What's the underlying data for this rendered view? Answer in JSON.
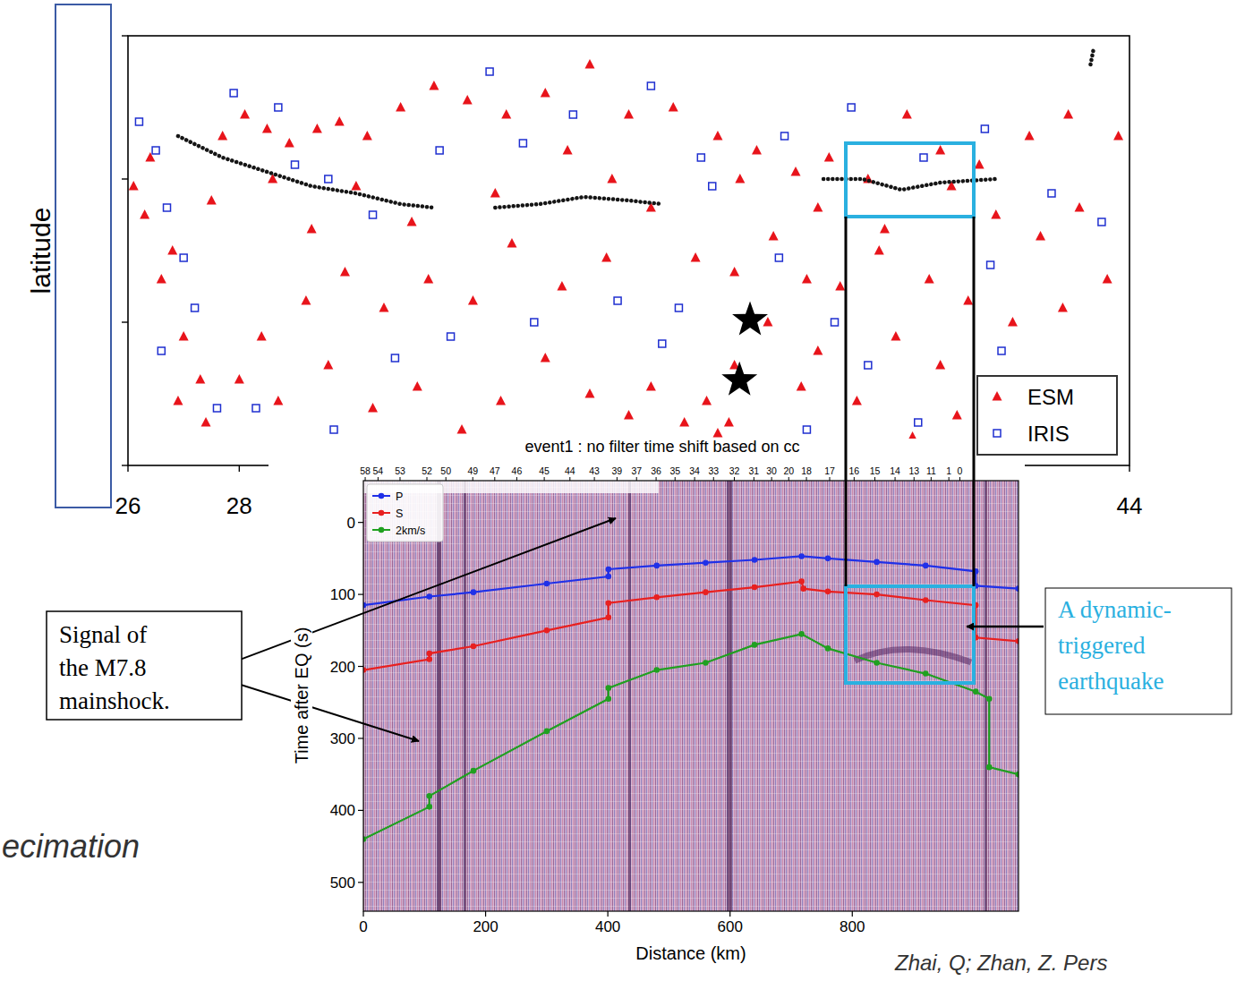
{
  "chart_data": [
    {
      "type": "scatter",
      "y_label": "latitude",
      "xlim": [
        26,
        44
      ],
      "ylim": [
        36,
        42
      ],
      "xticks": [
        26,
        28,
        44
      ],
      "yticks": [
        36,
        38,
        40,
        42
      ],
      "tick_labels": "x",
      "grid": false,
      "legend": "lower right",
      "series": [
        {
          "name": "ESM",
          "color": "#e8141b",
          "marker": "triangle",
          "x": [
            26.1,
            26.4,
            26.3,
            26.8,
            26.6,
            27.0,
            27.3,
            26.9,
            27.5,
            27.7,
            28.1,
            28.5,
            28.9,
            29.4,
            29.8,
            30.3,
            30.9,
            31.5,
            32.1,
            32.8,
            33.5,
            34.3,
            35.0,
            35.8,
            36.6,
            37.3,
            38.0,
            38.6,
            39.3,
            40.0,
            40.6,
            41.3,
            42.2,
            42.9,
            43.8,
            43.6,
            42.8,
            41.9,
            41.1,
            40.4,
            39.5,
            38.8,
            38.2,
            37.6,
            36.9,
            36.2,
            35.4,
            34.6,
            33.8,
            32.9,
            32.2,
            31.4,
            30.6,
            29.9,
            29.2,
            28.4,
            28.0,
            27.4,
            28.7,
            29.6,
            30.4,
            31.2,
            32.0,
            32.7,
            33.5,
            34.3,
            35.0,
            35.4,
            36.0,
            36.4,
            36.6,
            36.8,
            36.9,
            37.5,
            38.1,
            38.4,
            39.1,
            39.8,
            40.6,
            40.9,
            40.1,
            39.6,
            38.4,
            37.0,
            34.7,
            33.9,
            32.6,
            31.1,
            30.1,
            29.3,
            28.6,
            43.1,
            42.4,
            41.6,
            40.8
          ],
          "values": [
            39.9,
            40.3,
            39.5,
            39.0,
            38.6,
            37.8,
            37.2,
            36.9,
            39.7,
            40.6,
            40.9,
            40.7,
            40.5,
            40.7,
            40.8,
            40.6,
            41.0,
            41.3,
            41.1,
            40.9,
            41.2,
            41.6,
            40.9,
            41.0,
            40.6,
            40.4,
            40.1,
            40.3,
            40.0,
            40.9,
            40.4,
            40.2,
            40.6,
            40.9,
            40.6,
            38.6,
            38.2,
            38.0,
            38.3,
            38.6,
            39.0,
            38.5,
            38.6,
            39.2,
            38.7,
            38.9,
            39.6,
            38.9,
            38.5,
            39.1,
            38.3,
            38.6,
            38.2,
            38.7,
            38.3,
            37.8,
            37.2,
            36.6,
            36.9,
            37.4,
            36.8,
            37.1,
            36.5,
            36.9,
            37.5,
            37.0,
            36.7,
            37.1,
            36.6,
            36.9,
            36.45,
            36.6,
            37.4,
            38.0,
            37.1,
            37.6,
            36.9,
            37.8,
            37.4,
            36.7,
            36.4,
            39.3,
            39.6,
            40.0,
            40.0,
            40.4,
            39.8,
            39.4,
            39.9,
            39.3,
            40.0,
            39.6,
            39.2,
            39.5,
            39.9
          ]
        },
        {
          "name": "IRIS",
          "color": "#1f2fd0",
          "marker": "square",
          "x": [
            26.2,
            26.5,
            26.7,
            27.0,
            27.2,
            26.6,
            27.6,
            27.9,
            28.7,
            29.0,
            29.6,
            30.4,
            31.6,
            32.5,
            33.1,
            34.0,
            35.4,
            36.5,
            37.8,
            39.0,
            40.3,
            41.4,
            42.6,
            43.5,
            41.7,
            40.2,
            39.3,
            38.7,
            37.7,
            35.9,
            34.8,
            33.3,
            31.8,
            30.8,
            29.7,
            28.3,
            35.6,
            38.2,
            41.5,
            36.3
          ],
          "values": [
            40.8,
            40.4,
            39.6,
            38.9,
            38.2,
            37.6,
            36.8,
            41.2,
            41.0,
            40.2,
            40.0,
            39.5,
            40.4,
            41.5,
            40.5,
            40.9,
            41.3,
            39.9,
            40.6,
            41.0,
            40.3,
            40.7,
            39.8,
            39.4,
            37.6,
            36.6,
            37.4,
            38.0,
            38.9,
            38.2,
            38.3,
            38.0,
            37.8,
            37.5,
            36.5,
            36.8,
            37.7,
            36.5,
            38.8,
            40.3
          ]
        },
        {
          "type": "line",
          "color": "#151515",
          "line_style": "dotted",
          "x": [
            26.9,
            27.7,
            28.5,
            29.3,
            30.1,
            30.9,
            31.5,
            32.0,
            32.6,
            33.4,
            34.2,
            35.0,
            35.6,
            37.0,
            38.5,
            39.2,
            39.9,
            40.6,
            41.6,
            42.5,
            43.3,
            43.35
          ],
          "values": [
            40.6,
            40.3,
            40.1,
            39.9,
            39.8,
            39.65,
            39.6,
            null,
            39.6,
            39.65,
            39.75,
            39.7,
            39.65,
            null,
            40.0,
            40.0,
            39.85,
            39.95,
            40.0,
            null,
            41.6,
            41.8
          ]
        },
        {
          "color": "#000000",
          "marker": "star",
          "x": [
            37.18,
            36.99
          ],
          "values": [
            38.03,
            37.19
          ]
        }
      ]
    },
    {
      "type": "line",
      "title": "event1 : no filter time shift based on cc",
      "x_label": "Distance (km)",
      "y_label": "Time after EQ (s)",
      "xlim": [
        0,
        1072
      ],
      "ylim": [
        540,
        -58
      ],
      "xticks": [
        0,
        200,
        400,
        600,
        800
      ],
      "yticks": [
        0,
        100,
        200,
        300,
        400,
        500
      ],
      "x2ticks": [
        {
          "value": 3,
          "label": "58"
        },
        {
          "value": 24,
          "label": "54"
        },
        {
          "value": 60,
          "label": "53"
        },
        {
          "value": 104,
          "label": "52"
        },
        {
          "value": 135,
          "label": "50"
        },
        {
          "value": 179,
          "label": "49"
        },
        {
          "value": 215,
          "label": "47"
        },
        {
          "value": 251,
          "label": "46"
        },
        {
          "value": 296,
          "label": "45"
        },
        {
          "value": 338,
          "label": "44"
        },
        {
          "value": 378,
          "label": "43"
        },
        {
          "value": 415,
          "label": "39"
        },
        {
          "value": 447,
          "label": "37"
        },
        {
          "value": 479,
          "label": "36"
        },
        {
          "value": 510,
          "label": "35"
        },
        {
          "value": 542,
          "label": "34"
        },
        {
          "value": 573,
          "label": "33"
        },
        {
          "value": 607,
          "label": "32"
        },
        {
          "value": 639,
          "label": "31"
        },
        {
          "value": 668,
          "label": "30"
        },
        {
          "value": 696,
          "label": "20"
        },
        {
          "value": 725,
          "label": "18"
        },
        {
          "value": 763,
          "label": "17"
        },
        {
          "value": 803,
          "label": "16"
        },
        {
          "value": 837,
          "label": "15"
        },
        {
          "value": 870,
          "label": "14"
        },
        {
          "value": 901,
          "label": "13"
        },
        {
          "value": 929,
          "label": "11"
        },
        {
          "value": 958,
          "label": "1"
        },
        {
          "value": 976,
          "label": "0"
        }
      ],
      "legend": "upper left",
      "marker": "circle",
      "grid": false,
      "series": [
        {
          "name": "P",
          "color": "#2030e8",
          "x": [
            0,
            108,
            180,
            300,
            401,
            401,
            480,
            560,
            640,
            717,
            760,
            840,
            920,
            1002,
            1002,
            1072
          ],
          "values": [
            115,
            103,
            97,
            85,
            75,
            65,
            60,
            56,
            52,
            47,
            50,
            55,
            60,
            68,
            88,
            92
          ]
        },
        {
          "name": "S",
          "color": "#e82020",
          "x": [
            0,
            108,
            108,
            180,
            300,
            401,
            401,
            480,
            560,
            640,
            717,
            720,
            760,
            840,
            920,
            1002,
            1002,
            1072
          ],
          "values": [
            205,
            190,
            182,
            172,
            150,
            132,
            112,
            104,
            97,
            90,
            82,
            92,
            96,
            100,
            108,
            115,
            160,
            165
          ]
        },
        {
          "name": "2km/s",
          "color": "#20a020",
          "x": [
            0,
            108,
            108,
            180,
            300,
            401,
            401,
            480,
            560,
            640,
            717,
            760,
            840,
            920,
            1002,
            1024,
            1024,
            1072
          ],
          "values": [
            440,
            395,
            380,
            345,
            290,
            245,
            230,
            205,
            195,
            170,
            155,
            175,
            195,
            210,
            235,
            245,
            340,
            350
          ]
        }
      ],
      "annotations": [
        {
          "text_lines": [
            "Signal of",
            "the M7.8",
            "mainshock."
          ]
        },
        {
          "text_lines": [
            "A dynamic-",
            "triggered",
            "earthquake"
          ]
        }
      ]
    }
  ],
  "page_text": {
    "left_fragment": "ecimation",
    "citation": "Zhai, Q; Zhan, Z. Pers"
  }
}
